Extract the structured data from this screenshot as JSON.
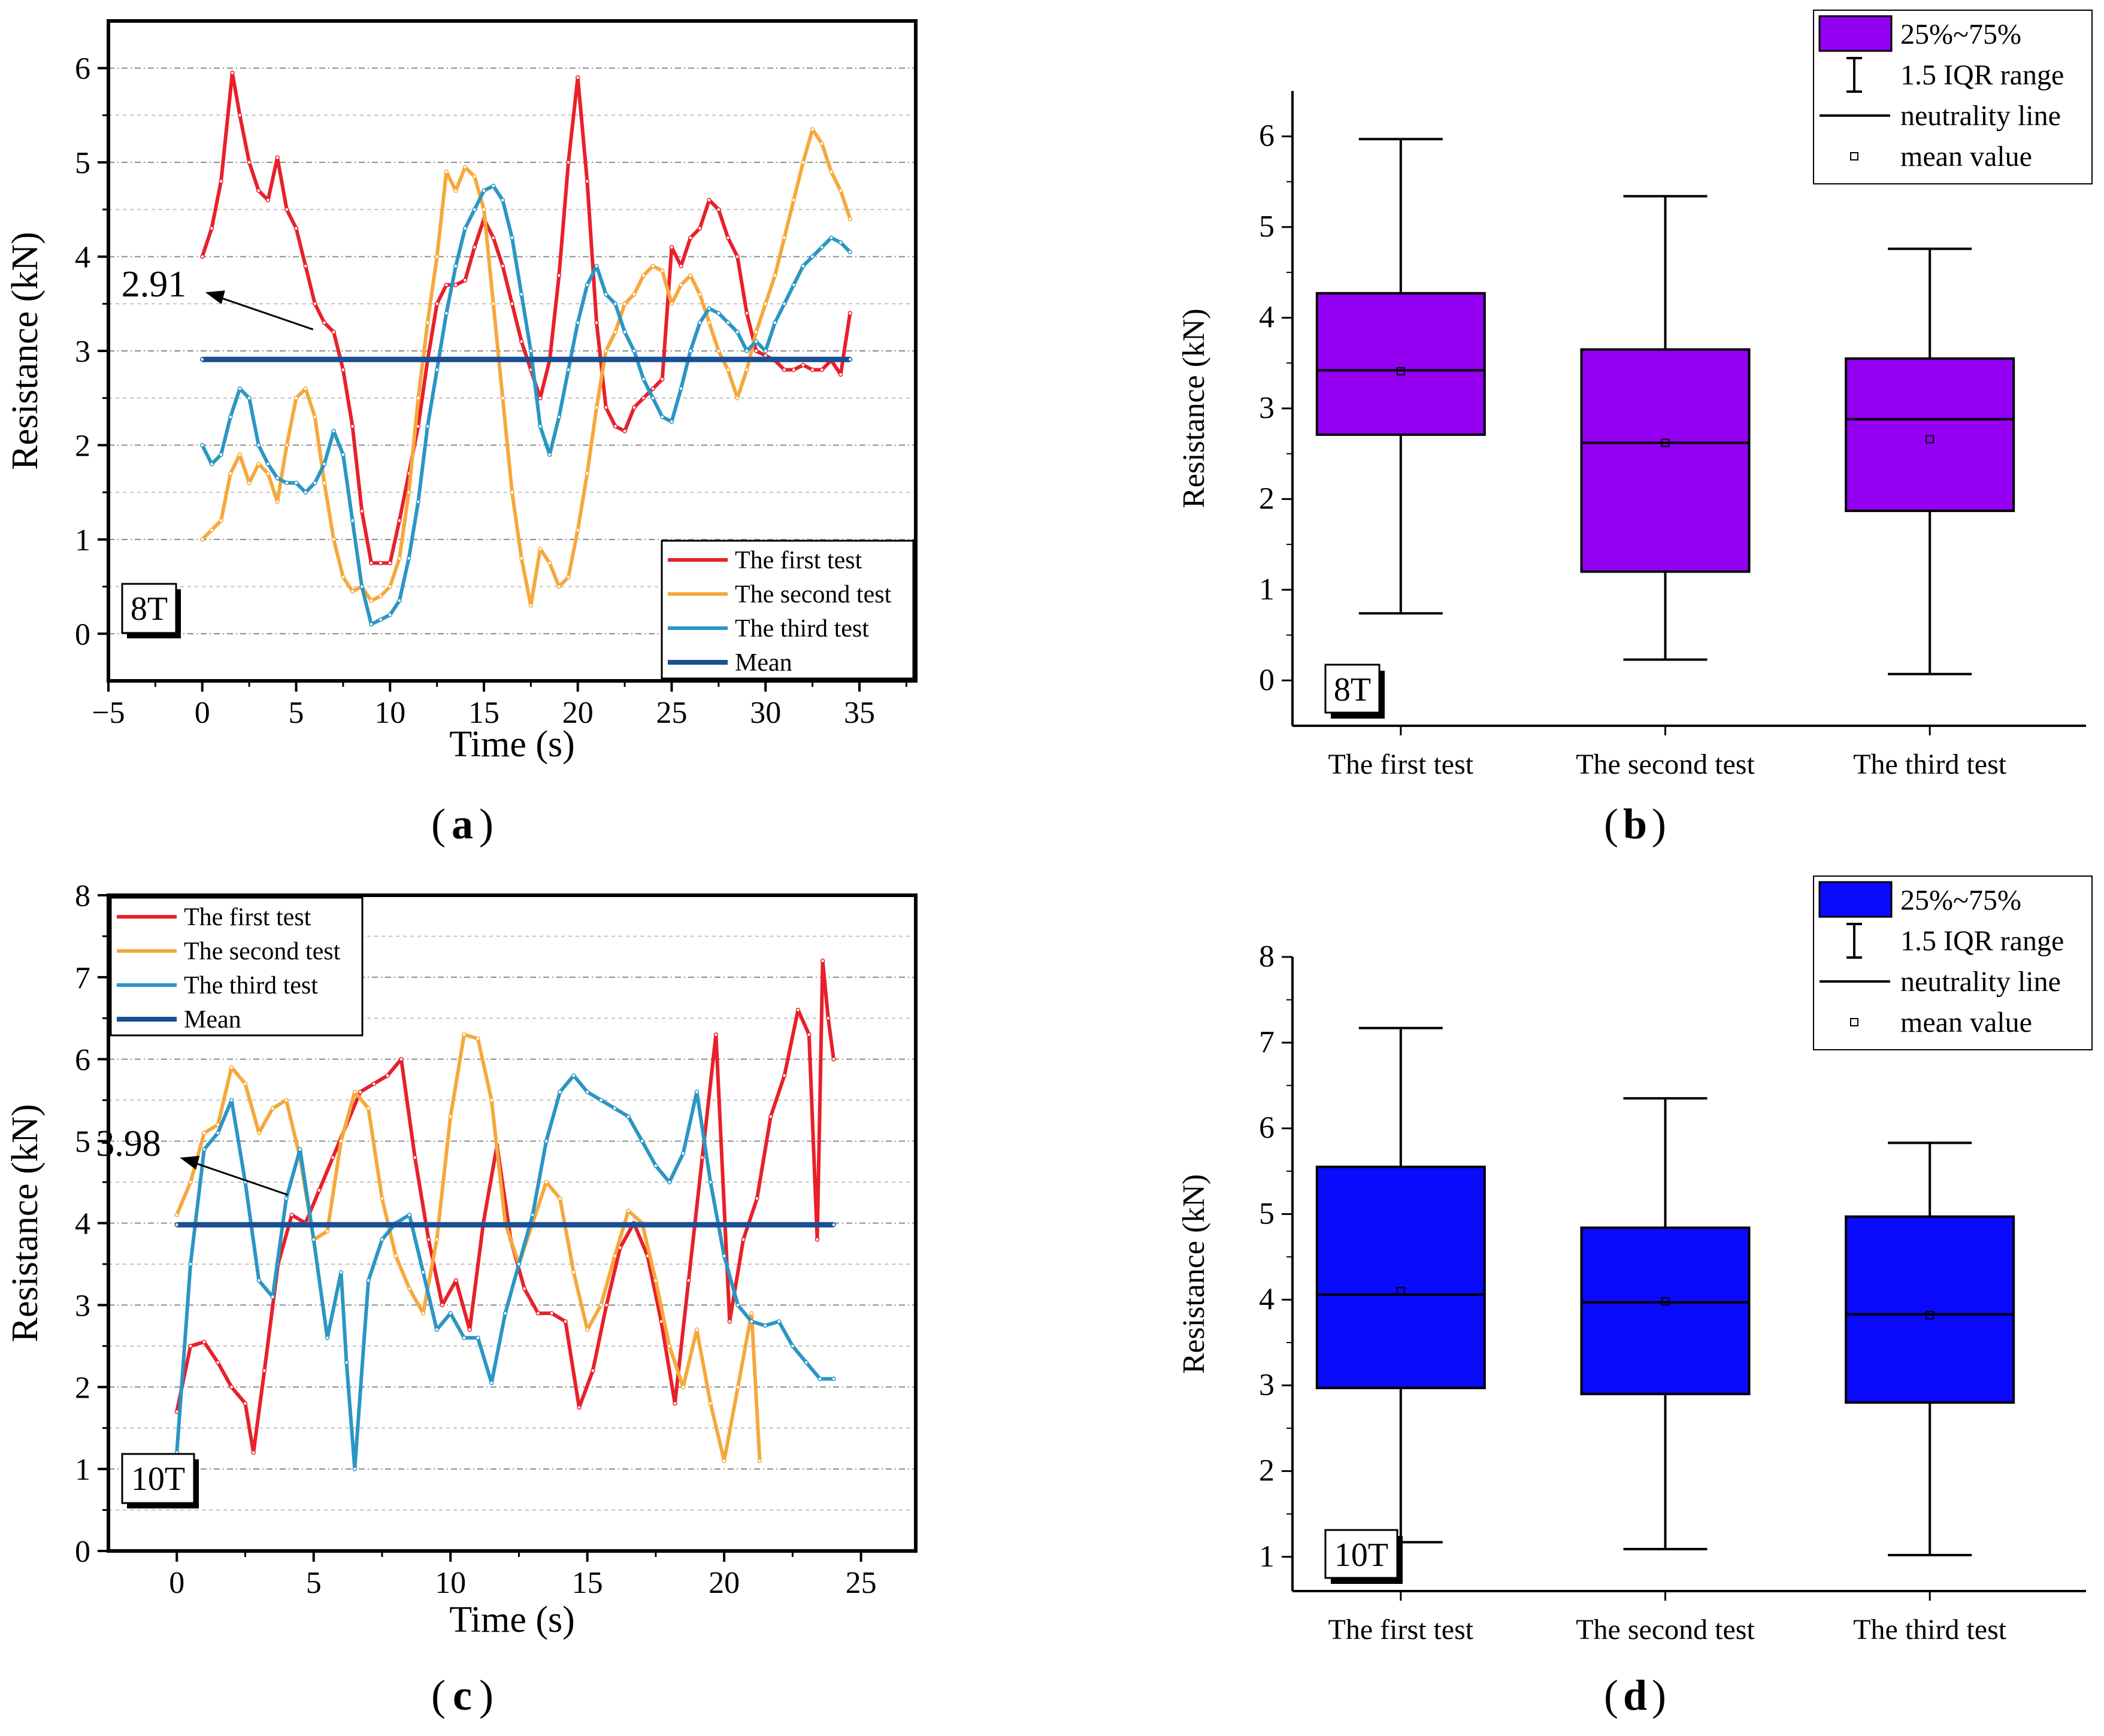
{
  "chart_data": [
    {
      "id": "a",
      "type": "line",
      "panel_label": "a",
      "tag": "8T",
      "xlabel": "Time (s)",
      "ylabel": "Resistance (kN)",
      "xlim": [
        -5,
        38
      ],
      "ylim": [
        -0.5,
        6.5
      ],
      "xticks": [
        -5,
        0,
        5,
        10,
        15,
        20,
        25,
        30,
        35
      ],
      "xtick_labels": [
        "−5",
        "0",
        "5",
        "10",
        "15",
        "20",
        "25",
        "30",
        "35"
      ],
      "yticks": [
        0,
        1,
        2,
        3,
        4,
        5,
        6
      ],
      "ytick_labels": [
        "0",
        "1",
        "2",
        "3",
        "4",
        "5",
        "6"
      ],
      "mean_annotation": "2.91",
      "legend_position": "bottom-right",
      "series": [
        {
          "name": "The first test",
          "color": "#e8202a",
          "x": [
            0,
            0.5,
            1,
            1.6,
            2,
            2.5,
            3,
            3.5,
            4,
            4.5,
            5,
            5.5,
            6,
            6.5,
            7,
            7.5,
            8,
            8.5,
            9,
            9.5,
            10,
            10.5,
            11,
            11.5,
            12,
            12.5,
            13,
            13.5,
            14,
            14.5,
            15,
            15.5,
            16,
            16.5,
            17,
            17.5,
            18,
            18.5,
            19,
            19.5,
            20,
            20.5,
            21,
            21.5,
            22,
            22.5,
            23,
            23.5,
            24,
            24.5,
            25,
            25.5,
            26,
            26.5,
            27,
            27.5,
            28,
            28.5,
            29,
            29.5,
            30,
            30.5,
            31,
            31.5,
            32,
            32.5,
            33,
            33.5,
            34,
            34.5
          ],
          "values": [
            4.0,
            4.3,
            4.8,
            5.95,
            5.5,
            5.0,
            4.7,
            4.6,
            5.05,
            4.5,
            4.3,
            3.9,
            3.5,
            3.3,
            3.2,
            2.8,
            2.2,
            1.3,
            0.75,
            0.75,
            0.75,
            1.2,
            1.7,
            2.2,
            2.9,
            3.5,
            3.7,
            3.7,
            3.75,
            4.1,
            4.4,
            4.2,
            3.9,
            3.5,
            3.1,
            2.8,
            2.5,
            2.9,
            3.8,
            5.0,
            5.9,
            4.8,
            3.3,
            2.4,
            2.2,
            2.15,
            2.4,
            2.5,
            2.6,
            2.7,
            4.1,
            3.9,
            4.2,
            4.3,
            4.6,
            4.5,
            4.2,
            4.0,
            3.4,
            3.0,
            2.95,
            2.9,
            2.8,
            2.8,
            2.85,
            2.8,
            2.8,
            2.9,
            2.75,
            3.4
          ]
        },
        {
          "name": "The second test",
          "color": "#f6a83c",
          "x": [
            0,
            0.5,
            1,
            1.5,
            2,
            2.5,
            3,
            3.5,
            4,
            4.5,
            5,
            5.5,
            6,
            6.5,
            7,
            7.5,
            8,
            8.5,
            9,
            9.5,
            10,
            10.5,
            11,
            11.5,
            12,
            12.5,
            13,
            13.5,
            14,
            14.5,
            15,
            15.5,
            16,
            16.5,
            17,
            17.5,
            18,
            18.5,
            19,
            19.5,
            20,
            20.5,
            21,
            21.5,
            22,
            22.5,
            23,
            23.5,
            24,
            24.5,
            25,
            25.5,
            26,
            26.5,
            27,
            27.5,
            28,
            28.5,
            29,
            29.5,
            30,
            30.5,
            31,
            31.5,
            32,
            32.5,
            33,
            33.5,
            34,
            34.5
          ],
          "values": [
            1.0,
            1.1,
            1.2,
            1.7,
            1.9,
            1.6,
            1.8,
            1.7,
            1.4,
            2.0,
            2.5,
            2.6,
            2.3,
            1.6,
            1.0,
            0.6,
            0.45,
            0.5,
            0.35,
            0.4,
            0.5,
            0.8,
            1.5,
            2.5,
            3.3,
            4.0,
            4.9,
            4.7,
            4.95,
            4.85,
            4.5,
            3.5,
            2.5,
            1.5,
            0.8,
            0.3,
            0.9,
            0.75,
            0.5,
            0.6,
            1.1,
            1.7,
            2.4,
            3.0,
            3.2,
            3.5,
            3.6,
            3.8,
            3.9,
            3.85,
            3.5,
            3.7,
            3.8,
            3.6,
            3.3,
            3.0,
            2.8,
            2.5,
            2.8,
            3.2,
            3.5,
            3.8,
            4.2,
            4.6,
            5.0,
            5.35,
            5.2,
            4.9,
            4.7,
            4.4
          ]
        },
        {
          "name": "The third test",
          "color": "#2a96c4",
          "x": [
            0,
            0.5,
            1,
            1.5,
            2,
            2.5,
            3,
            3.5,
            4,
            4.5,
            5,
            5.5,
            6,
            6.5,
            7,
            7.5,
            8,
            8.5,
            9,
            9.5,
            10,
            10.5,
            11,
            11.5,
            12,
            12.5,
            13,
            13.5,
            14,
            14.5,
            15,
            15.5,
            16,
            16.5,
            17,
            17.5,
            18,
            18.5,
            19,
            19.5,
            20,
            20.5,
            21,
            21.5,
            22,
            22.5,
            23,
            23.5,
            24,
            24.5,
            25,
            25.5,
            26,
            26.5,
            27,
            27.5,
            28,
            28.5,
            29,
            29.5,
            30,
            30.5,
            31,
            31.5,
            32,
            32.5,
            33,
            33.5,
            34,
            34.5
          ],
          "values": [
            2.0,
            1.8,
            1.9,
            2.3,
            2.6,
            2.5,
            2.0,
            1.8,
            1.65,
            1.6,
            1.6,
            1.5,
            1.6,
            1.8,
            2.15,
            1.9,
            1.2,
            0.5,
            0.1,
            0.15,
            0.2,
            0.35,
            0.8,
            1.4,
            2.2,
            2.8,
            3.4,
            3.9,
            4.3,
            4.5,
            4.7,
            4.75,
            4.6,
            4.2,
            3.6,
            3.0,
            2.2,
            1.9,
            2.3,
            2.8,
            3.3,
            3.7,
            3.9,
            3.6,
            3.5,
            3.2,
            3.0,
            2.7,
            2.5,
            2.3,
            2.25,
            2.6,
            3.0,
            3.3,
            3.45,
            3.4,
            3.3,
            3.2,
            3.0,
            3.1,
            3.0,
            3.3,
            3.5,
            3.7,
            3.9,
            4.0,
            4.1,
            4.2,
            4.15,
            4.05
          ]
        },
        {
          "name": "Mean",
          "color": "#1a4f91",
          "x": [
            0,
            34.5
          ],
          "values": [
            2.91,
            2.91
          ]
        }
      ]
    },
    {
      "id": "b",
      "type": "box",
      "panel_label": "b",
      "tag": "8T",
      "ylabel": "Resistance (kN)",
      "ylim": [
        -0.5,
        6.5
      ],
      "yticks": [
        0,
        1,
        2,
        3,
        4,
        5,
        6
      ],
      "ytick_labels": [
        "0",
        "1",
        "2",
        "3",
        "4",
        "5",
        "6"
      ],
      "box_color": "#9300f2",
      "categories": [
        "The first test",
        "The second test",
        "The third test"
      ],
      "boxes": [
        {
          "min": 0.74,
          "q1": 2.71,
          "median": 3.42,
          "q3": 4.27,
          "max": 5.97,
          "mean": 3.41
        },
        {
          "min": 0.23,
          "q1": 1.2,
          "median": 2.62,
          "q3": 3.65,
          "max": 5.34,
          "mean": 2.62
        },
        {
          "min": 0.07,
          "q1": 1.87,
          "median": 2.88,
          "q3": 3.55,
          "max": 4.76,
          "mean": 2.66
        }
      ],
      "legend": [
        "25%~75%",
        "1.5 IQR range",
        "neutrality line",
        "mean value"
      ],
      "legend_position": "top-right"
    },
    {
      "id": "c",
      "type": "line",
      "panel_label": "c",
      "tag": "10T",
      "xlabel": "Time (s)",
      "ylabel": "Resistance (kN)",
      "xlim": [
        -2.5,
        27
      ],
      "ylim": [
        0,
        8
      ],
      "xticks": [
        0,
        5,
        10,
        15,
        20,
        25
      ],
      "xtick_labels": [
        "0",
        "5",
        "10",
        "15",
        "20",
        "25"
      ],
      "yticks": [
        0,
        1,
        2,
        3,
        4,
        5,
        6,
        7,
        8
      ],
      "ytick_labels": [
        "0",
        "1",
        "2",
        "3",
        "4",
        "5",
        "6",
        "7",
        "8"
      ],
      "mean_annotation": "3.98",
      "legend_position": "top-left",
      "series": [
        {
          "name": "The first test",
          "color": "#e8202a",
          "x": [
            0,
            0.5,
            1,
            1.5,
            2,
            2.5,
            2.8,
            3.2,
            3.7,
            4.2,
            4.7,
            5.2,
            5.7,
            6.2,
            6.7,
            7.2,
            7.7,
            8.2,
            8.7,
            9.2,
            9.7,
            10.2,
            10.7,
            11.2,
            11.7,
            12.2,
            12.7,
            13.2,
            13.7,
            14.2,
            14.7,
            15.2,
            15.7,
            16.2,
            16.7,
            17.2,
            17.7,
            18.2,
            18.7,
            19.2,
            19.7,
            20.2,
            20.7,
            21.2,
            21.7,
            22.2,
            22.7,
            23.1,
            23.4,
            23.6,
            23.8,
            24.0
          ],
          "values": [
            1.7,
            2.5,
            2.55,
            2.3,
            2.0,
            1.8,
            1.2,
            2.2,
            3.5,
            4.1,
            4.0,
            4.4,
            4.8,
            5.2,
            5.6,
            5.7,
            5.8,
            6.0,
            4.8,
            3.8,
            3.0,
            3.3,
            2.7,
            4.0,
            4.95,
            3.8,
            3.2,
            2.9,
            2.9,
            2.8,
            1.75,
            2.2,
            3.0,
            3.7,
            4.0,
            3.6,
            2.8,
            1.8,
            3.3,
            4.8,
            6.3,
            2.8,
            3.8,
            4.3,
            5.3,
            5.8,
            6.6,
            6.3,
            3.8,
            7.2,
            6.5,
            6.0
          ]
        },
        {
          "name": "The second test",
          "color": "#f6a83c",
          "x": [
            0,
            0.5,
            1,
            1.5,
            2,
            2.5,
            3,
            3.5,
            4,
            4.5,
            5,
            5.5,
            6,
            6.5,
            7,
            7.5,
            8,
            8.5,
            9,
            9.5,
            10,
            10.5,
            11,
            11.5,
            12,
            12.5,
            13,
            13.5,
            14,
            14.5,
            15,
            15.5,
            16,
            16.5,
            17,
            17.5,
            18,
            18.5,
            19,
            19.5,
            20,
            20.5,
            21,
            21.3
          ],
          "values": [
            4.1,
            4.5,
            5.1,
            5.2,
            5.9,
            5.7,
            5.1,
            5.4,
            5.5,
            4.8,
            3.8,
            3.9,
            5.0,
            5.6,
            5.4,
            4.3,
            3.6,
            3.2,
            2.9,
            3.8,
            5.3,
            6.3,
            6.25,
            5.5,
            4.0,
            3.5,
            4.0,
            4.5,
            4.3,
            3.4,
            2.7,
            3.0,
            3.6,
            4.15,
            4.0,
            3.3,
            2.5,
            2.0,
            2.7,
            1.8,
            1.1,
            2.0,
            2.9,
            1.1
          ]
        },
        {
          "name": "The third test",
          "color": "#2a96c4",
          "x": [
            0,
            0.5,
            1,
            1.5,
            2,
            2.5,
            3,
            3.5,
            4,
            4.5,
            5,
            5.5,
            6,
            6.2,
            6.5,
            7,
            7.5,
            8,
            8.5,
            9,
            9.5,
            10,
            10.5,
            11,
            11.5,
            12,
            12.5,
            13,
            13.5,
            14,
            14.5,
            15,
            15.5,
            16,
            16.5,
            17,
            17.5,
            18,
            18.5,
            19,
            19.5,
            20,
            20.5,
            21,
            21.5,
            22,
            22.5,
            23,
            23.5,
            24
          ],
          "values": [
            1.2,
            3.5,
            4.9,
            5.1,
            5.5,
            4.5,
            3.3,
            3.1,
            4.3,
            4.9,
            3.8,
            2.6,
            3.4,
            2.3,
            1.0,
            3.3,
            3.8,
            4.0,
            4.1,
            3.4,
            2.7,
            2.9,
            2.6,
            2.6,
            2.05,
            2.9,
            3.5,
            4.1,
            5.0,
            5.6,
            5.8,
            5.6,
            5.5,
            5.4,
            5.3,
            5.0,
            4.7,
            4.5,
            4.85,
            5.6,
            4.5,
            3.6,
            3.0,
            2.8,
            2.75,
            2.8,
            2.5,
            2.3,
            2.1,
            2.1
          ]
        },
        {
          "name": "Mean",
          "color": "#1a4f91",
          "x": [
            0,
            24
          ],
          "values": [
            3.98,
            3.98
          ]
        }
      ]
    },
    {
      "id": "d",
      "type": "box",
      "panel_label": "d",
      "tag": "10T",
      "ylabel": "Resistance (kN)",
      "ylim": [
        0.6,
        8
      ],
      "yticks": [
        1,
        2,
        3,
        4,
        5,
        6,
        7,
        8
      ],
      "ytick_labels": [
        "1",
        "2",
        "3",
        "4",
        "5",
        "6",
        "7",
        "8"
      ],
      "box_color": "#0a0aff",
      "categories": [
        "The first test",
        "The second test",
        "The third test"
      ],
      "boxes": [
        {
          "min": 1.17,
          "q1": 2.97,
          "median": 4.06,
          "q3": 5.55,
          "max": 7.17,
          "mean": 4.1
        },
        {
          "min": 1.09,
          "q1": 2.9,
          "median": 3.97,
          "q3": 4.84,
          "max": 6.35,
          "mean": 3.98
        },
        {
          "min": 1.02,
          "q1": 2.8,
          "median": 3.83,
          "q3": 4.97,
          "max": 5.83,
          "mean": 3.82
        }
      ],
      "legend": [
        "25%~75%",
        "1.5 IQR range",
        "neutrality line",
        "mean value"
      ],
      "legend_position": "top-right"
    }
  ]
}
